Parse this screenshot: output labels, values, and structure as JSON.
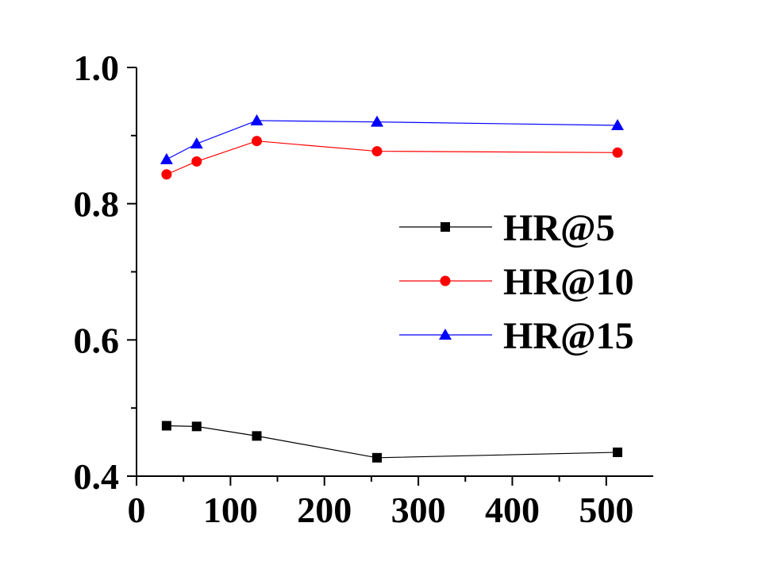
{
  "chart_data": {
    "type": "line",
    "title": "",
    "xlabel": "",
    "ylabel": "",
    "xlim": [
      0,
      550
    ],
    "ylim": [
      0.4,
      1.0
    ],
    "x_ticks": [
      0,
      100,
      200,
      300,
      400,
      500
    ],
    "x_tick_labels": [
      "0",
      "100",
      "200",
      "300",
      "400",
      "500"
    ],
    "y_ticks": [
      0.4,
      0.6,
      0.8,
      1.0
    ],
    "y_tick_labels": [
      "0.4",
      "0.6",
      "0.8",
      "1.0"
    ],
    "grid": false,
    "legend_position": "center-right",
    "x": [
      32,
      64,
      128,
      256,
      512
    ],
    "series": [
      {
        "name": "HR@5",
        "values": [
          0.474,
          0.473,
          0.459,
          0.427,
          0.435
        ],
        "color": "#000000",
        "marker": "square"
      },
      {
        "name": "HR@10",
        "values": [
          0.843,
          0.862,
          0.892,
          0.877,
          0.875
        ],
        "color": "#ff0000",
        "marker": "circle"
      },
      {
        "name": "HR@15",
        "values": [
          0.865,
          0.888,
          0.922,
          0.92,
          0.915
        ],
        "color": "#0000ff",
        "marker": "triangle"
      }
    ]
  }
}
